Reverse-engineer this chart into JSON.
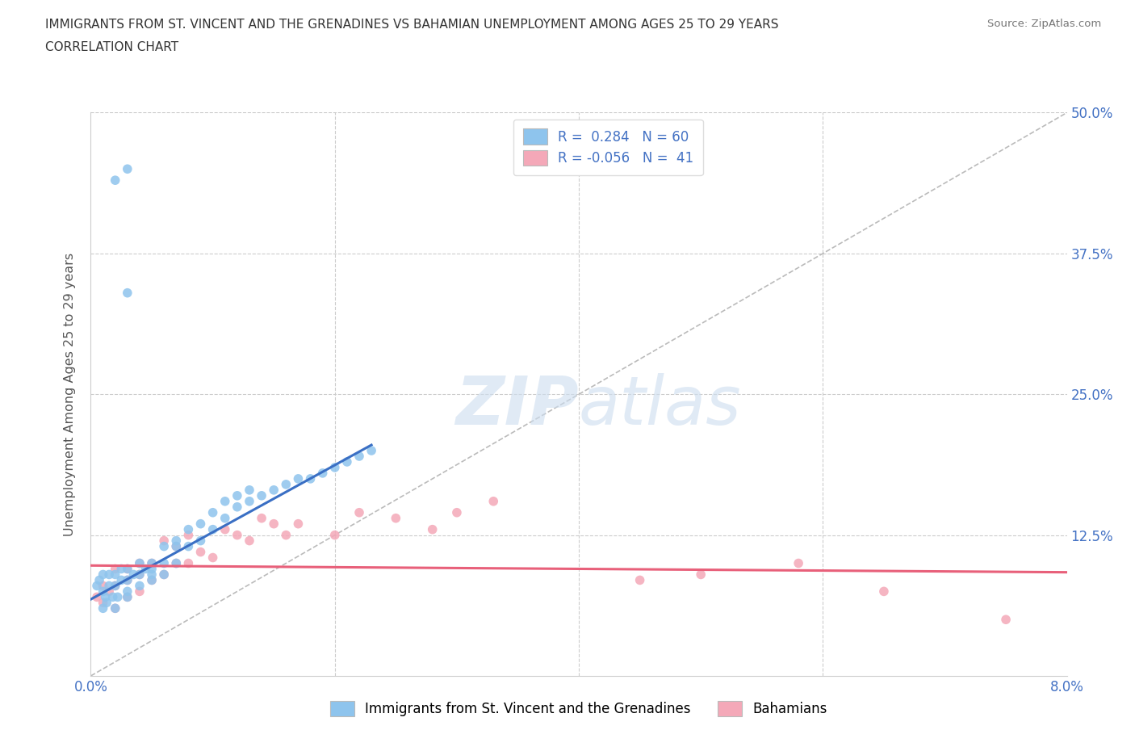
{
  "title_line1": "IMMIGRANTS FROM ST. VINCENT AND THE GRENADINES VS BAHAMIAN UNEMPLOYMENT AMONG AGES 25 TO 29 YEARS",
  "title_line2": "CORRELATION CHART",
  "source": "Source: ZipAtlas.com",
  "ylabel_label": "Unemployment Among Ages 25 to 29 years",
  "legend_label_blue": "Immigrants from St. Vincent and the Grenadines",
  "legend_label_pink": "Bahamians",
  "blue_r": "0.284",
  "blue_n": "60",
  "pink_r": "-0.056",
  "pink_n": "41",
  "blue_color": "#8ec4ed",
  "pink_color": "#f4a8b8",
  "blue_trend_color": "#3a6fc4",
  "pink_trend_color": "#e8607a",
  "diag_color": "#bbbbbb",
  "grid_color": "#cccccc",
  "xmin": 0.0,
  "xmax": 0.08,
  "ymin": 0.0,
  "ymax": 0.5,
  "yticks": [
    0.0,
    0.125,
    0.25,
    0.375,
    0.5
  ],
  "ytick_labels": [
    "",
    "12.5%",
    "25.0%",
    "37.5%",
    "50.0%"
  ],
  "blue_x": [
    0.0005,
    0.0007,
    0.001,
    0.001,
    0.001,
    0.0012,
    0.0013,
    0.0015,
    0.0015,
    0.0018,
    0.002,
    0.002,
    0.002,
    0.0022,
    0.0025,
    0.0025,
    0.003,
    0.003,
    0.003,
    0.003,
    0.0035,
    0.004,
    0.004,
    0.004,
    0.0045,
    0.005,
    0.005,
    0.005,
    0.005,
    0.006,
    0.006,
    0.006,
    0.007,
    0.007,
    0.007,
    0.008,
    0.008,
    0.009,
    0.009,
    0.01,
    0.01,
    0.011,
    0.011,
    0.012,
    0.012,
    0.013,
    0.013,
    0.014,
    0.015,
    0.016,
    0.017,
    0.018,
    0.019,
    0.02,
    0.021,
    0.022,
    0.023,
    0.002,
    0.003,
    0.003
  ],
  "blue_y": [
    0.08,
    0.085,
    0.06,
    0.075,
    0.09,
    0.07,
    0.065,
    0.08,
    0.09,
    0.07,
    0.06,
    0.08,
    0.09,
    0.07,
    0.085,
    0.095,
    0.07,
    0.075,
    0.085,
    0.095,
    0.09,
    0.08,
    0.09,
    0.1,
    0.095,
    0.085,
    0.09,
    0.095,
    0.1,
    0.09,
    0.1,
    0.115,
    0.1,
    0.115,
    0.12,
    0.115,
    0.13,
    0.12,
    0.135,
    0.13,
    0.145,
    0.14,
    0.155,
    0.15,
    0.16,
    0.155,
    0.165,
    0.16,
    0.165,
    0.17,
    0.175,
    0.175,
    0.18,
    0.185,
    0.19,
    0.195,
    0.2,
    0.44,
    0.45,
    0.34
  ],
  "pink_x": [
    0.0005,
    0.001,
    0.001,
    0.0015,
    0.002,
    0.002,
    0.002,
    0.003,
    0.003,
    0.003,
    0.004,
    0.004,
    0.004,
    0.005,
    0.005,
    0.006,
    0.006,
    0.007,
    0.007,
    0.008,
    0.008,
    0.009,
    0.01,
    0.011,
    0.012,
    0.013,
    0.014,
    0.015,
    0.016,
    0.017,
    0.02,
    0.022,
    0.025,
    0.028,
    0.03,
    0.033,
    0.045,
    0.05,
    0.058,
    0.065,
    0.075
  ],
  "pink_y": [
    0.07,
    0.065,
    0.08,
    0.075,
    0.06,
    0.08,
    0.095,
    0.07,
    0.085,
    0.095,
    0.075,
    0.09,
    0.1,
    0.085,
    0.1,
    0.12,
    0.09,
    0.1,
    0.115,
    0.1,
    0.125,
    0.11,
    0.105,
    0.13,
    0.125,
    0.12,
    0.14,
    0.135,
    0.125,
    0.135,
    0.125,
    0.145,
    0.14,
    0.13,
    0.145,
    0.155,
    0.085,
    0.09,
    0.1,
    0.075,
    0.05
  ],
  "blue_trend_x": [
    0.0,
    0.023
  ],
  "blue_trend_y": [
    0.068,
    0.205
  ],
  "pink_trend_x": [
    0.0,
    0.08
  ],
  "pink_trend_y": [
    0.098,
    0.092
  ]
}
